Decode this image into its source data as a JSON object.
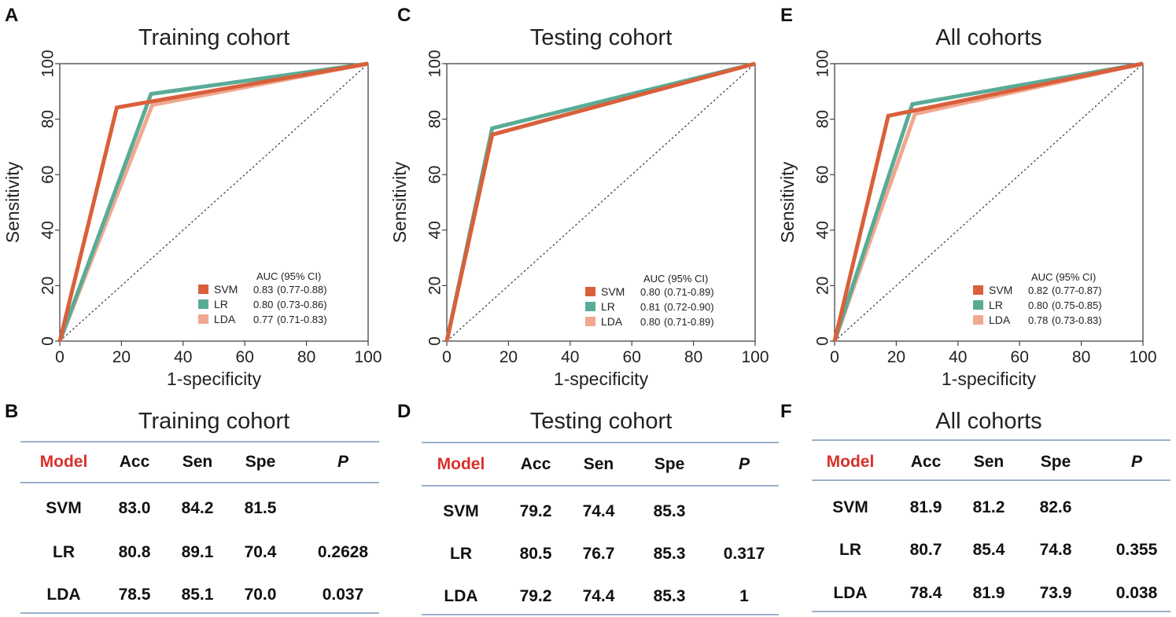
{
  "panels": [
    {
      "letter": "A",
      "chart": {
        "type": "line",
        "title": "Training cohort",
        "xlabel": "1-specificity",
        "ylabel": "Sensitivity",
        "xlim": [
          0,
          100
        ],
        "ylim": [
          0,
          100
        ],
        "xticks": [
          "0",
          "20",
          "40",
          "60",
          "80",
          "100"
        ],
        "yticks": [
          "0",
          "20",
          "40",
          "60",
          "80",
          "100"
        ],
        "legend_header": "AUC (95% CI)",
        "series": [
          {
            "name": "SVM",
            "auc": "0.83",
            "ci": "(0.77-0.88)",
            "color": "#d9603b",
            "x": [
              0,
              18.5,
              100
            ],
            "y": [
              0,
              84.2,
              100
            ]
          },
          {
            "name": "LR",
            "auc": "0.80",
            "ci": "(0.73-0.86)",
            "color": "#5aab96",
            "x": [
              0,
              29.6,
              100
            ],
            "y": [
              0,
              89.1,
              100
            ]
          },
          {
            "name": "LDA",
            "auc": "0.77",
            "ci": "(0.71-0.83)",
            "color": "#f0a890",
            "x": [
              0,
              30.0,
              100
            ],
            "y": [
              0,
              85.1,
              100
            ]
          }
        ]
      }
    },
    {
      "letter": "C",
      "chart": {
        "type": "line",
        "title": "Testing cohort",
        "xlabel": "1-specificity",
        "ylabel": "Sensitivity",
        "xlim": [
          0,
          100
        ],
        "ylim": [
          0,
          100
        ],
        "xticks": [
          "0",
          "20",
          "40",
          "60",
          "80",
          "100"
        ],
        "yticks": [
          "0",
          "20",
          "40",
          "60",
          "80",
          "100"
        ],
        "legend_header": "AUC (95% CI)",
        "series": [
          {
            "name": "SVM",
            "auc": "0.80",
            "ci": "(0.71-0.89)",
            "color": "#d9603b",
            "x": [
              0,
              14.7,
              100
            ],
            "y": [
              0,
              74.4,
              100
            ]
          },
          {
            "name": "LR",
            "auc": "0.81",
            "ci": "(0.72-0.90)",
            "color": "#5aab96",
            "x": [
              0,
              14.7,
              100
            ],
            "y": [
              0,
              76.7,
              100
            ]
          },
          {
            "name": "LDA",
            "auc": "0.80",
            "ci": "(0.71-0.89)",
            "color": "#f0a890",
            "x": [
              0,
              14.7,
              100
            ],
            "y": [
              0,
              74.4,
              100
            ]
          }
        ]
      }
    },
    {
      "letter": "E",
      "chart": {
        "type": "line",
        "title": "All cohorts",
        "xlabel": "1-specificity",
        "ylabel": "Sensitivity",
        "xlim": [
          0,
          100
        ],
        "ylim": [
          0,
          100
        ],
        "xticks": [
          "0",
          "20",
          "40",
          "60",
          "80",
          "100"
        ],
        "yticks": [
          "0",
          "20",
          "40",
          "60",
          "80",
          "100"
        ],
        "legend_header": "AUC (95% CI)",
        "series": [
          {
            "name": "SVM",
            "auc": "0.82",
            "ci": "(0.77-0.87)",
            "color": "#d9603b",
            "x": [
              0,
              17.4,
              100
            ],
            "y": [
              0,
              81.2,
              100
            ]
          },
          {
            "name": "LR",
            "auc": "0.80",
            "ci": "(0.75-0.85)",
            "color": "#5aab96",
            "x": [
              0,
              25.2,
              100
            ],
            "y": [
              0,
              85.4,
              100
            ]
          },
          {
            "name": "LDA",
            "auc": "0.78",
            "ci": "(0.73-0.83)",
            "color": "#f0a890",
            "x": [
              0,
              26.1,
              100
            ],
            "y": [
              0,
              81.9,
              100
            ]
          }
        ]
      }
    }
  ],
  "tables": [
    {
      "letter": "B",
      "title": "Training cohort",
      "headers": [
        "Model",
        "Acc",
        "Sen",
        "Spe",
        "P"
      ],
      "rows": [
        [
          "SVM",
          "83.0",
          "84.2",
          "81.5",
          ""
        ],
        [
          "LR",
          "80.8",
          "89.1",
          "70.4",
          "0.2628"
        ],
        [
          "LDA",
          "78.5",
          "85.1",
          "70.0",
          "0.037"
        ]
      ]
    },
    {
      "letter": "D",
      "title": "Testing cohort",
      "headers": [
        "Model",
        "Acc",
        "Sen",
        "Spe",
        "P"
      ],
      "rows": [
        [
          "SVM",
          "79.2",
          "74.4",
          "85.3",
          ""
        ],
        [
          "LR",
          "80.5",
          "76.7",
          "85.3",
          "0.317"
        ],
        [
          "LDA",
          "79.2",
          "74.4",
          "85.3",
          "1"
        ]
      ]
    },
    {
      "letter": "F",
      "title": "All cohorts",
      "headers": [
        "Model",
        "Acc",
        "Sen",
        "Spe",
        "P"
      ],
      "rows": [
        [
          "SVM",
          "81.9",
          "81.2",
          "82.6",
          ""
        ],
        [
          "LR",
          "80.7",
          "85.4",
          "74.8",
          "0.355"
        ],
        [
          "LDA",
          "78.4",
          "81.9",
          "73.9",
          "0.038"
        ]
      ]
    }
  ]
}
